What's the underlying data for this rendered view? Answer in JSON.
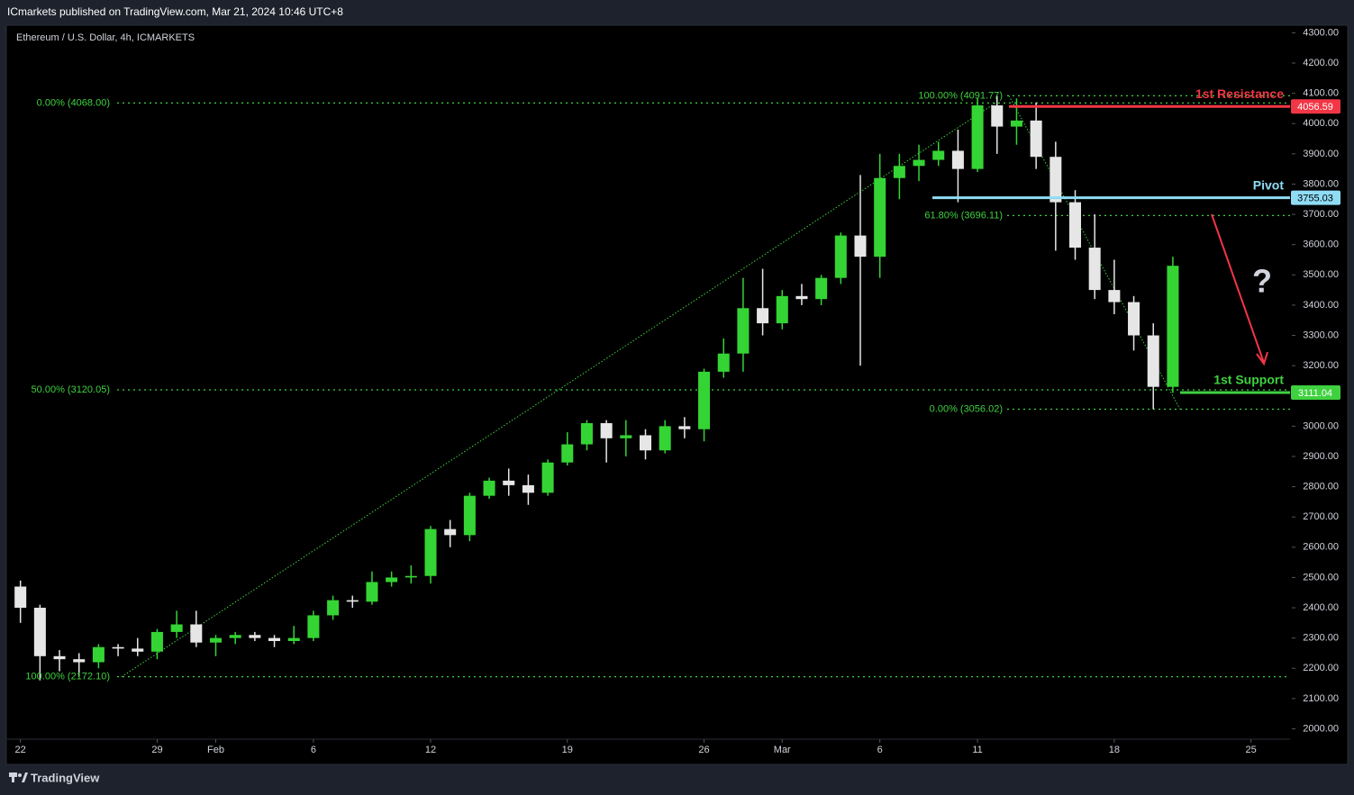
{
  "header": {
    "publisher": "ICmarkets published on TradingView.com, Mar 21, 2024 10:46 UTC+8"
  },
  "footer": {
    "brand": "TradingView"
  },
  "chart_data": {
    "type": "candlestick",
    "title": "Ethereum / U.S. Dollar, 4h, ICMARKETS",
    "up_color": "#35d435",
    "down_color": "#e6e6e6",
    "x": [
      "Jan 22",
      "Jan 23",
      "Jan 24",
      "Jan 25",
      "Jan 26",
      "Jan 27",
      "Jan 28",
      "Jan 29",
      "Jan 30",
      "Jan 31",
      "Feb 1",
      "Feb 2",
      "Feb 3",
      "Feb 4",
      "Feb 5",
      "Feb 6",
      "Feb 7",
      "Feb 8",
      "Feb 9",
      "Feb 10",
      "Feb 11",
      "Feb 12",
      "Feb 13",
      "Feb 14",
      "Feb 15",
      "Feb 16",
      "Feb 17",
      "Feb 18",
      "Feb 19",
      "Feb 20",
      "Feb 21",
      "Feb 22",
      "Feb 23",
      "Feb 24",
      "Feb 25",
      "Feb 26",
      "Feb 27",
      "Feb 28",
      "Feb 29",
      "Mar 1",
      "Mar 2",
      "Mar 3",
      "Mar 4",
      "Mar 5",
      "Mar 6",
      "Mar 7",
      "Mar 8",
      "Mar 9",
      "Mar 10",
      "Mar 11",
      "Mar 12",
      "Mar 13",
      "Mar 14",
      "Mar 15",
      "Mar 16",
      "Mar 17",
      "Mar 18",
      "Mar 19",
      "Mar 20",
      "Mar 21"
    ],
    "open": [
      2470,
      2400,
      2240,
      2230,
      2220,
      2270,
      2265,
      2255,
      2320,
      2345,
      2285,
      2300,
      2310,
      2300,
      2290,
      2300,
      2375,
      2425,
      2420,
      2485,
      2500,
      2505,
      2660,
      2640,
      2770,
      2820,
      2805,
      2780,
      2880,
      2940,
      3010,
      2960,
      2970,
      2920,
      3000,
      2990,
      3180,
      3240,
      3390,
      3340,
      3430,
      3420,
      3490,
      3630,
      3560,
      3820,
      3860,
      3880,
      3910,
      3850,
      4060,
      3990,
      4010,
      3890,
      3740,
      3590,
      3450,
      3410,
      3300,
      3130
    ],
    "high": [
      2490,
      2410,
      2260,
      2250,
      2280,
      2280,
      2300,
      2330,
      2390,
      2390,
      2310,
      2320,
      2320,
      2310,
      2340,
      2390,
      2440,
      2440,
      2520,
      2520,
      2540,
      2670,
      2690,
      2780,
      2830,
      2860,
      2840,
      2890,
      2980,
      3020,
      3020,
      3020,
      2990,
      3020,
      3030,
      3190,
      3290,
      3490,
      3520,
      3450,
      3470,
      3500,
      3640,
      3830,
      3900,
      3900,
      3930,
      3940,
      3980,
      4085,
      4091.77,
      4083,
      4070,
      3940,
      3780,
      3700,
      3550,
      3430,
      3340,
      3560
    ],
    "low": [
      2350,
      2160,
      2190,
      2172.1,
      2200,
      2240,
      2240,
      2230,
      2300,
      2270,
      2240,
      2280,
      2290,
      2270,
      2280,
      2290,
      2360,
      2400,
      2410,
      2470,
      2480,
      2480,
      2600,
      2620,
      2760,
      2770,
      2740,
      2770,
      2870,
      2920,
      2880,
      2900,
      2890,
      2910,
      2960,
      2950,
      3160,
      3180,
      3300,
      3320,
      3400,
      3400,
      3470,
      3200,
      3490,
      3750,
      3810,
      3860,
      3740,
      3840,
      3900,
      3930,
      3850,
      3580,
      3550,
      3420,
      3370,
      3250,
      3056.02,
      3110
    ],
    "close": [
      2400,
      2240,
      2230,
      2220,
      2270,
      2265,
      2255,
      2320,
      2345,
      2285,
      2300,
      2310,
      2300,
      2290,
      2300,
      2375,
      2425,
      2420,
      2485,
      2500,
      2505,
      2660,
      2640,
      2770,
      2820,
      2805,
      2780,
      2880,
      2940,
      3010,
      2960,
      2970,
      2920,
      3000,
      2990,
      3180,
      3240,
      3390,
      3340,
      3430,
      3420,
      3490,
      3630,
      3560,
      3820,
      3860,
      3880,
      3910,
      3850,
      4060,
      3990,
      4010,
      3890,
      3740,
      3590,
      3450,
      3410,
      3300,
      3130,
      3530
    ],
    "xlim": [
      "Jan 21",
      "Mar 27"
    ],
    "xticks": [
      {
        "value": "Jan 22",
        "label": "22"
      },
      {
        "value": "Jan 29",
        "label": "29"
      },
      {
        "value": "Feb 1",
        "label": "Feb"
      },
      {
        "value": "Feb 6",
        "label": "6"
      },
      {
        "value": "Feb 12",
        "label": "12"
      },
      {
        "value": "Feb 19",
        "label": "19"
      },
      {
        "value": "Feb 26",
        "label": "26"
      },
      {
        "value": "Mar 1",
        "label": "Mar"
      },
      {
        "value": "Mar 6",
        "label": "6"
      },
      {
        "value": "Mar 11",
        "label": "11"
      },
      {
        "value": "Mar 18",
        "label": "18"
      },
      {
        "value": "Mar 25",
        "label": "25"
      }
    ],
    "ylim": [
      1930,
      4325
    ],
    "yticks": [
      {
        "value": 2000,
        "label": "2000.00"
      },
      {
        "value": 2100,
        "label": "2100.00"
      },
      {
        "value": 2200,
        "label": "2200.00"
      },
      {
        "value": 2300,
        "label": "2300.00"
      },
      {
        "value": 2400,
        "label": "2400.00"
      },
      {
        "value": 2500,
        "label": "2500.00"
      },
      {
        "value": 2600,
        "label": "2600.00"
      },
      {
        "value": 2700,
        "label": "2700.00"
      },
      {
        "value": 2800,
        "label": "2800.00"
      },
      {
        "value": 2900,
        "label": "2900.00"
      },
      {
        "value": 3000,
        "label": "3000.00"
      },
      {
        "value": 3100,
        "label": "3100.00"
      },
      {
        "value": 3200,
        "label": "3200.00"
      },
      {
        "value": 3300,
        "label": "3300.00"
      },
      {
        "value": 3400,
        "label": "3400.00"
      },
      {
        "value": 3500,
        "label": "3500.00"
      },
      {
        "value": 3600,
        "label": "3600.00"
      },
      {
        "value": 3700,
        "label": "3700.00"
      },
      {
        "value": 3800,
        "label": "3800.00"
      },
      {
        "value": 3900,
        "label": "3900.00"
      },
      {
        "value": 4000,
        "label": "4000.00"
      },
      {
        "value": 4100,
        "label": "4100.00"
      },
      {
        "value": 4200,
        "label": "4200.00"
      },
      {
        "value": 4300,
        "label": "4300.00"
      }
    ],
    "grid": false,
    "fib_color": "#3fd13f",
    "fib_retracements": [
      {
        "levels": [
          {
            "label": "0.00% (4068.00)",
            "value": 4068
          },
          {
            "label": "50.00% (3120.05)",
            "value": 3120.05
          },
          {
            "label": "100.00% (2172.10)",
            "value": 2172.1
          }
        ]
      },
      {
        "levels": [
          {
            "label": "100.00% (4091.77)",
            "value": 4091.77
          },
          {
            "label": "61.80% (3696.11)",
            "value": 3696.11
          },
          {
            "label": "0.00% (3056.02)",
            "value": 3056.02
          }
        ]
      }
    ],
    "levels": [
      {
        "name": "1st Resistance",
        "value": 4056.59,
        "color": "#f23645"
      },
      {
        "name": "Pivot",
        "value": 3755.03,
        "color": "#8fdcf5"
      },
      {
        "name": "1st Support",
        "value": 3111.04,
        "color": "#3fd13f"
      }
    ],
    "annotation": "?"
  }
}
